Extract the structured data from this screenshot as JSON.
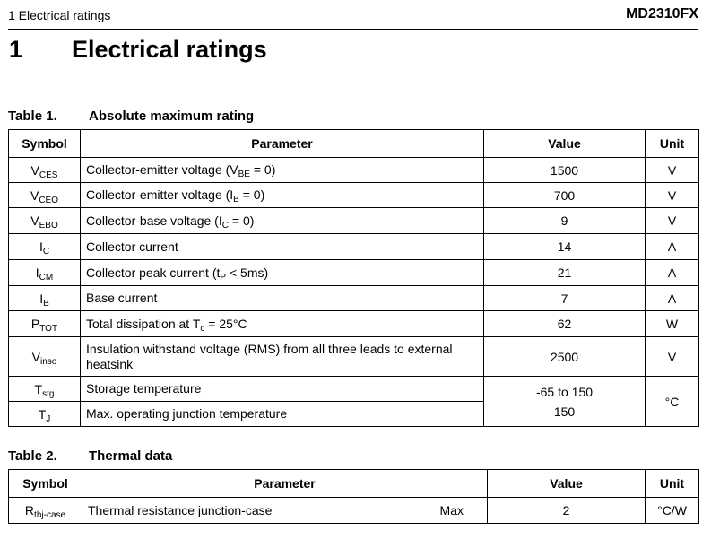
{
  "header": {
    "section": "1 Electrical ratings",
    "part": "MD2310FX"
  },
  "section": {
    "number": "1",
    "title": "Electrical ratings"
  },
  "table1": {
    "caption_num": "Table 1.",
    "caption_title": "Absolute maximum rating",
    "headers": {
      "symbol": "Symbol",
      "parameter": "Parameter",
      "value": "Value",
      "unit": "Unit"
    },
    "rows": [
      {
        "sym": "V",
        "sub": "CES",
        "param": "Collector-emitter voltage (V",
        "psub": "BE",
        "ptail": " = 0)",
        "value": "1500",
        "unit": "V"
      },
      {
        "sym": "V",
        "sub": "CEO",
        "param": "Collector-emitter voltage (I",
        "psub": "B",
        "ptail": " = 0)",
        "value": "700",
        "unit": "V"
      },
      {
        "sym": "V",
        "sub": "EBO",
        "param": "Collector-base voltage (I",
        "psub": "C",
        "ptail": " = 0)",
        "value": "9",
        "unit": "V"
      },
      {
        "sym": "I",
        "sub": "C",
        "param": "Collector current",
        "psub": "",
        "ptail": "",
        "value": "14",
        "unit": "A"
      },
      {
        "sym": "I",
        "sub": "CM",
        "param": "Collector peak current (t",
        "psub": "P",
        "ptail": " < 5ms)",
        "value": "21",
        "unit": "A"
      },
      {
        "sym": "I",
        "sub": "B",
        "param": "Base current",
        "psub": "",
        "ptail": "",
        "value": "7",
        "unit": "A"
      },
      {
        "sym": "P",
        "sub": "TOT",
        "param": "Total dissipation at T",
        "psub": "c",
        "ptail": " = 25°C",
        "value": "62",
        "unit": "W"
      },
      {
        "sym": "V",
        "sub": "inso",
        "param": "Insulation withstand voltage (RMS) from all three leads to external heatsink",
        "psub": "",
        "ptail": "",
        "value": "2500",
        "unit": "V"
      },
      {
        "sym": "T",
        "sub": "stg",
        "param": "Storage temperature",
        "psub": "",
        "ptail": "",
        "value": "-65 to 150",
        "unit": "°C"
      },
      {
        "sym": "T",
        "sub": "J",
        "param": "Max. operating junction temperature",
        "psub": "",
        "ptail": "",
        "value": "150",
        "unit": ""
      }
    ]
  },
  "table2": {
    "caption_num": "Table 2.",
    "caption_title": "Thermal data",
    "headers": {
      "symbol": "Symbol",
      "parameter": "Parameter",
      "value": "Value",
      "unit": "Unit"
    },
    "rows": [
      {
        "sym": "R",
        "sub": "thj-case",
        "param": "Thermal resistance junction-case",
        "qual": "Max",
        "value": "2",
        "unit": "°C/W"
      }
    ]
  }
}
